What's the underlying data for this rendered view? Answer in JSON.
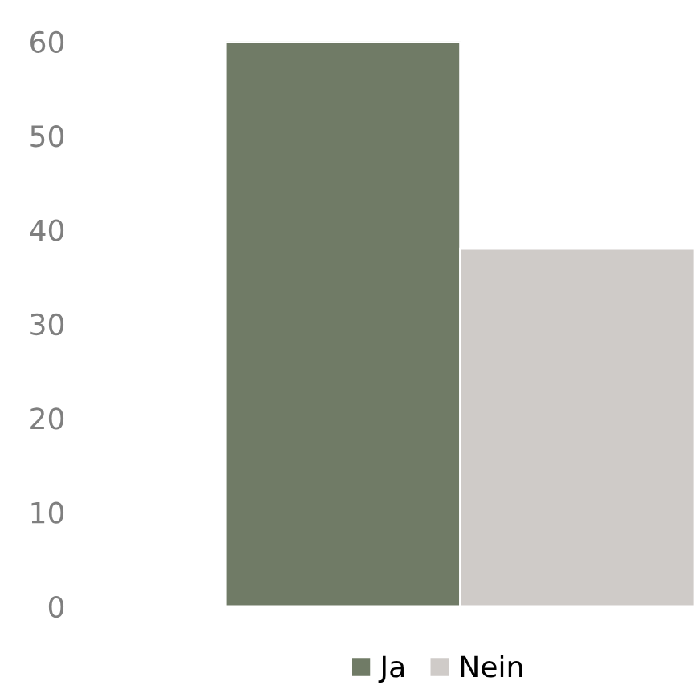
{
  "chart_data": {
    "type": "bar",
    "categories": [
      null
    ],
    "series": [
      {
        "name": "Ja",
        "color": "#707b66",
        "values": [
          60
        ]
      },
      {
        "name": "Nein",
        "color": "#cfcbc8",
        "values": [
          38
        ]
      }
    ],
    "ylim": [
      0,
      60
    ],
    "yticks": [
      0,
      10,
      20,
      30,
      40,
      50,
      60
    ],
    "grid": false,
    "legend": "bottom"
  }
}
